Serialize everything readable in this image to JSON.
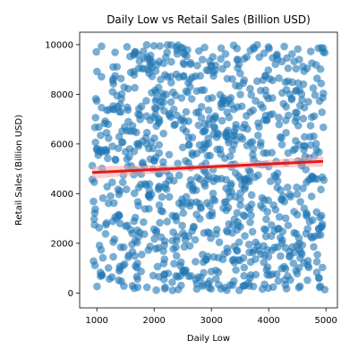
{
  "chart_data": {
    "type": "scatter",
    "title": "Daily Low vs Retail Sales (Billion USD)",
    "xlabel": "Daily Low",
    "ylabel": "Retail Sales (Billion USD)",
    "xlim": [
      700,
      5200
    ],
    "ylim": [
      -600,
      10500
    ],
    "xticks": [
      1000,
      2000,
      3000,
      4000,
      5000
    ],
    "yticks": [
      0,
      2000,
      4000,
      6000,
      8000,
      10000
    ],
    "xtick_labels": [
      "1000",
      "2000",
      "3000",
      "4000",
      "5000"
    ],
    "ytick_labels": [
      "0",
      "2000",
      "4000",
      "6000",
      "8000",
      "10000"
    ],
    "grid": false,
    "point_color": "#1f77b4",
    "point_opacity": 0.6,
    "n_points": 1000,
    "x_range": [
      920,
      4980
    ],
    "y_range": [
      100,
      10000
    ],
    "regression": {
      "color": "#e31a1c",
      "x": [
        920,
        4950
      ],
      "y": [
        4850,
        5300
      ],
      "ci_color": "#f4a6a6"
    }
  }
}
